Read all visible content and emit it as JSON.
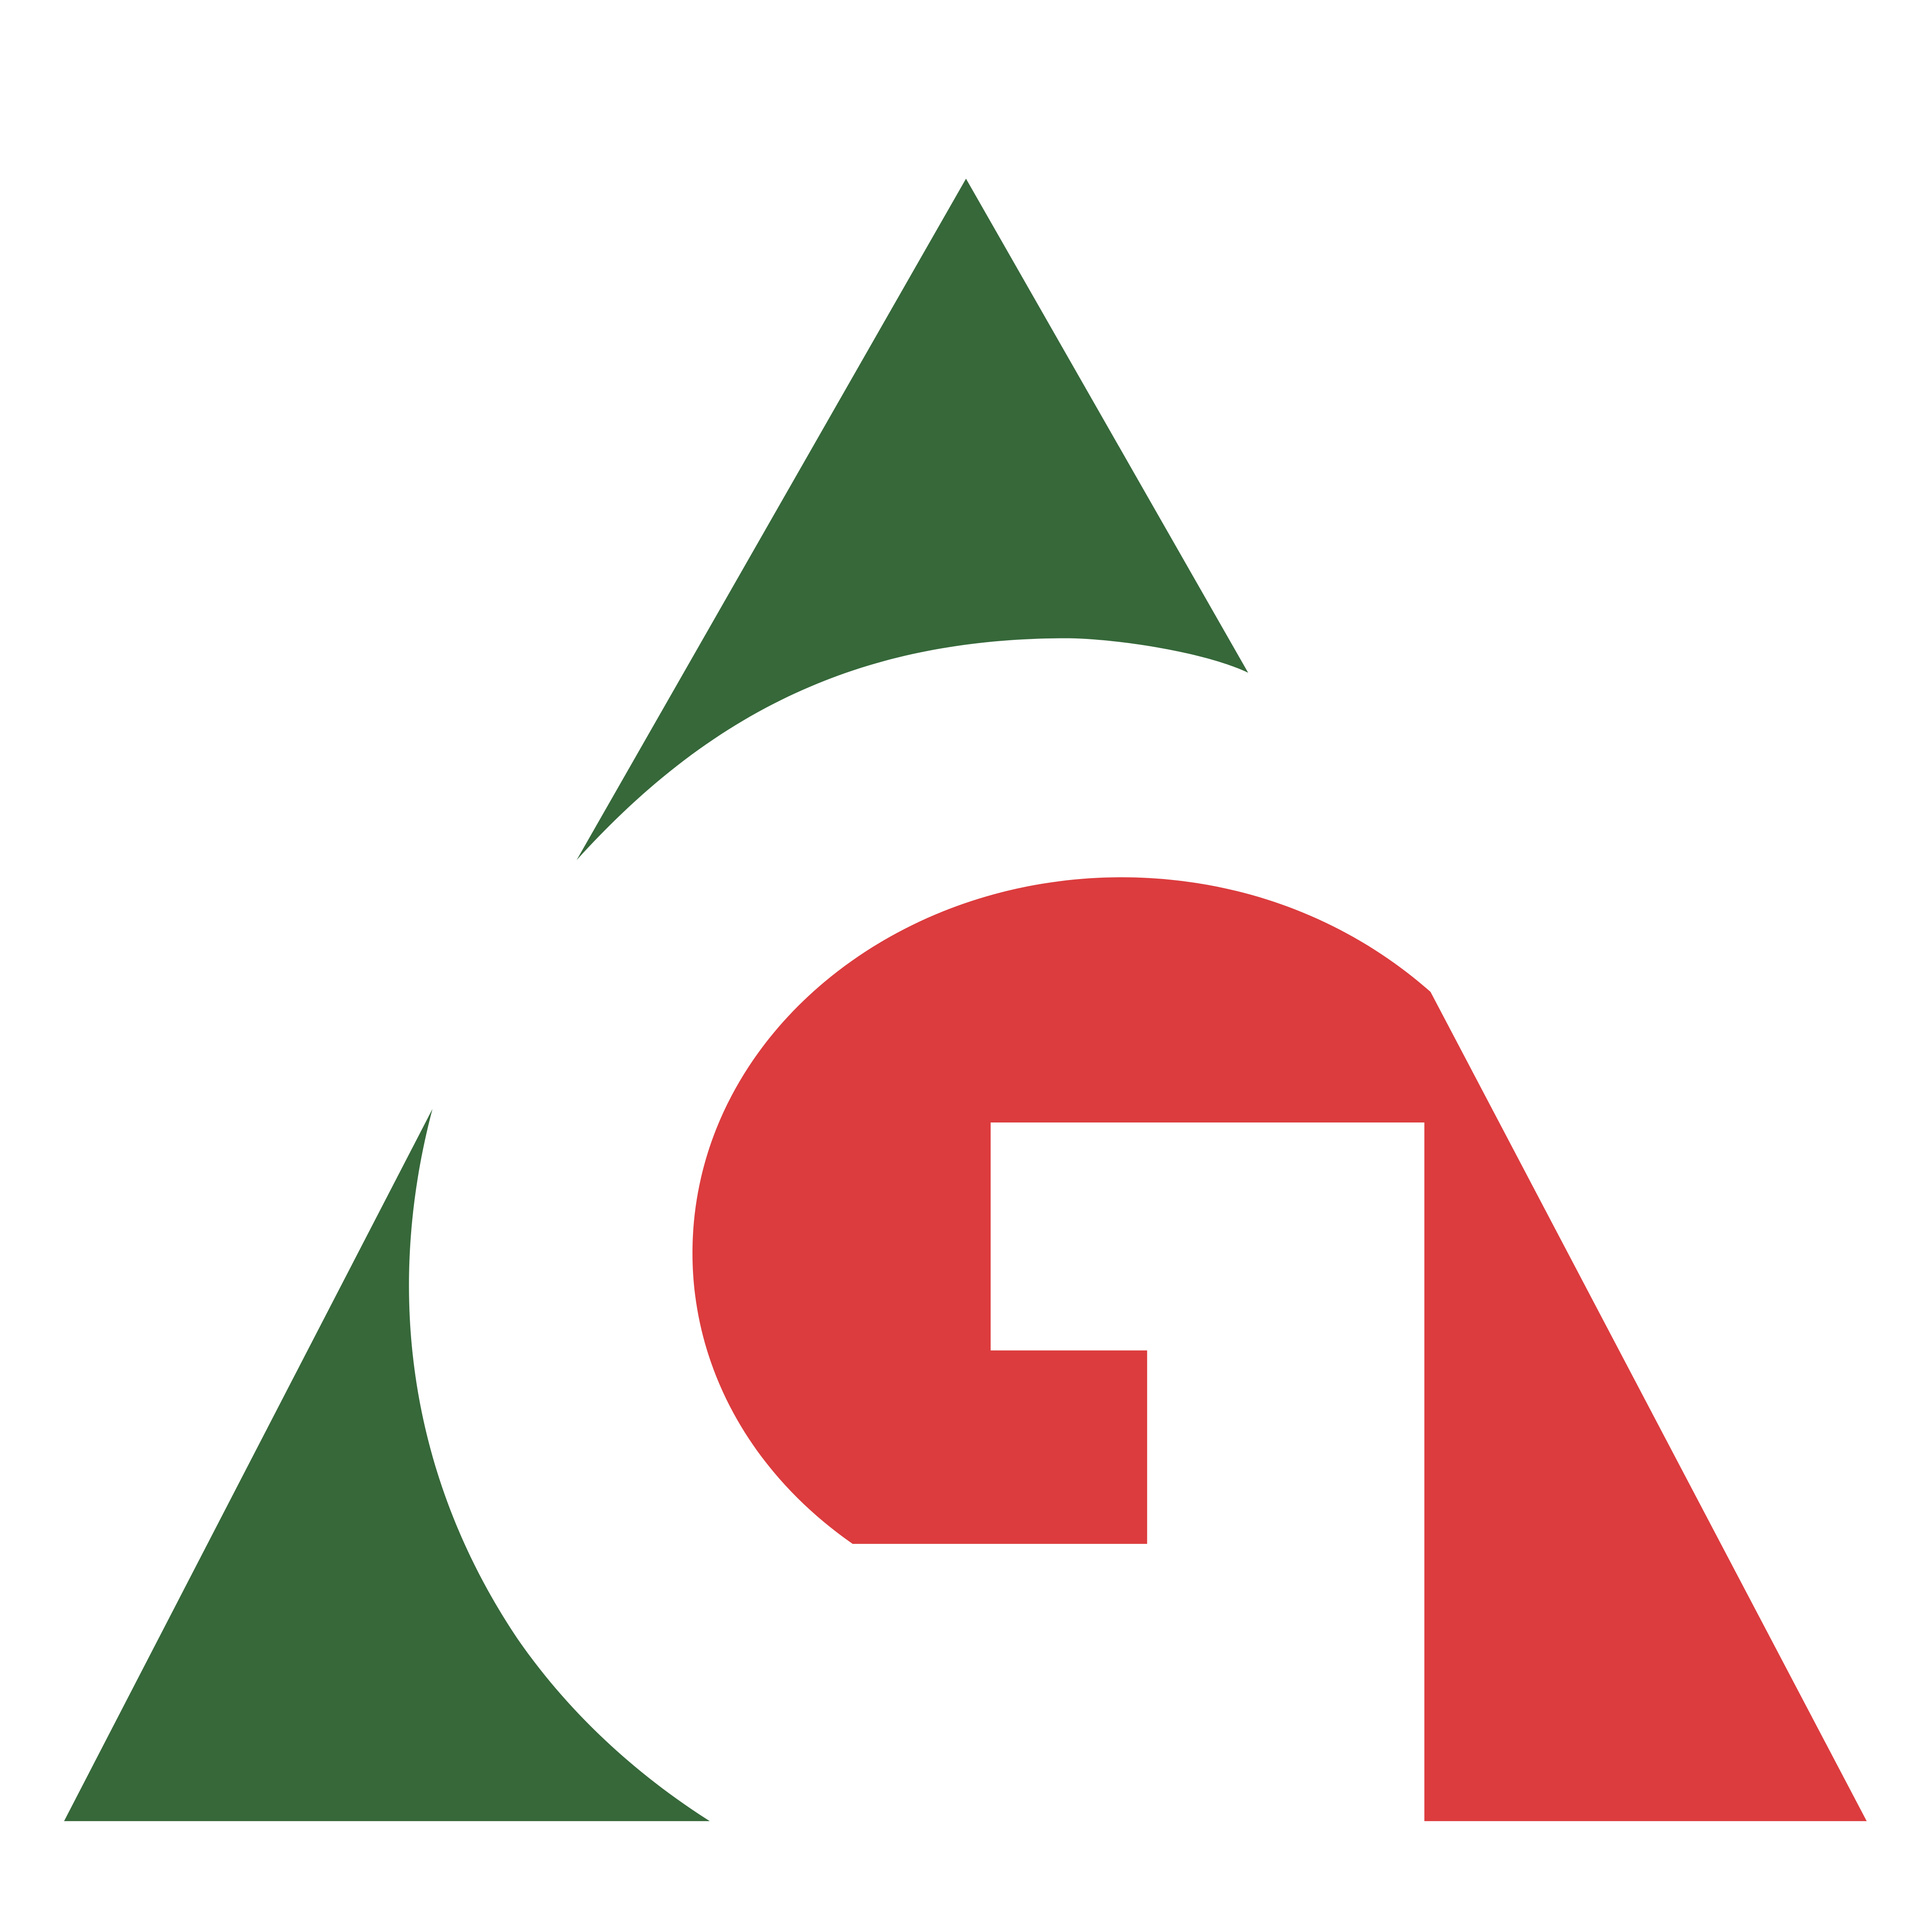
{
  "logo": {
    "name": "triangle-g-logo",
    "colors": {
      "background": "#ffffff",
      "green": "#36683a",
      "red": "#dc3c3e"
    }
  }
}
